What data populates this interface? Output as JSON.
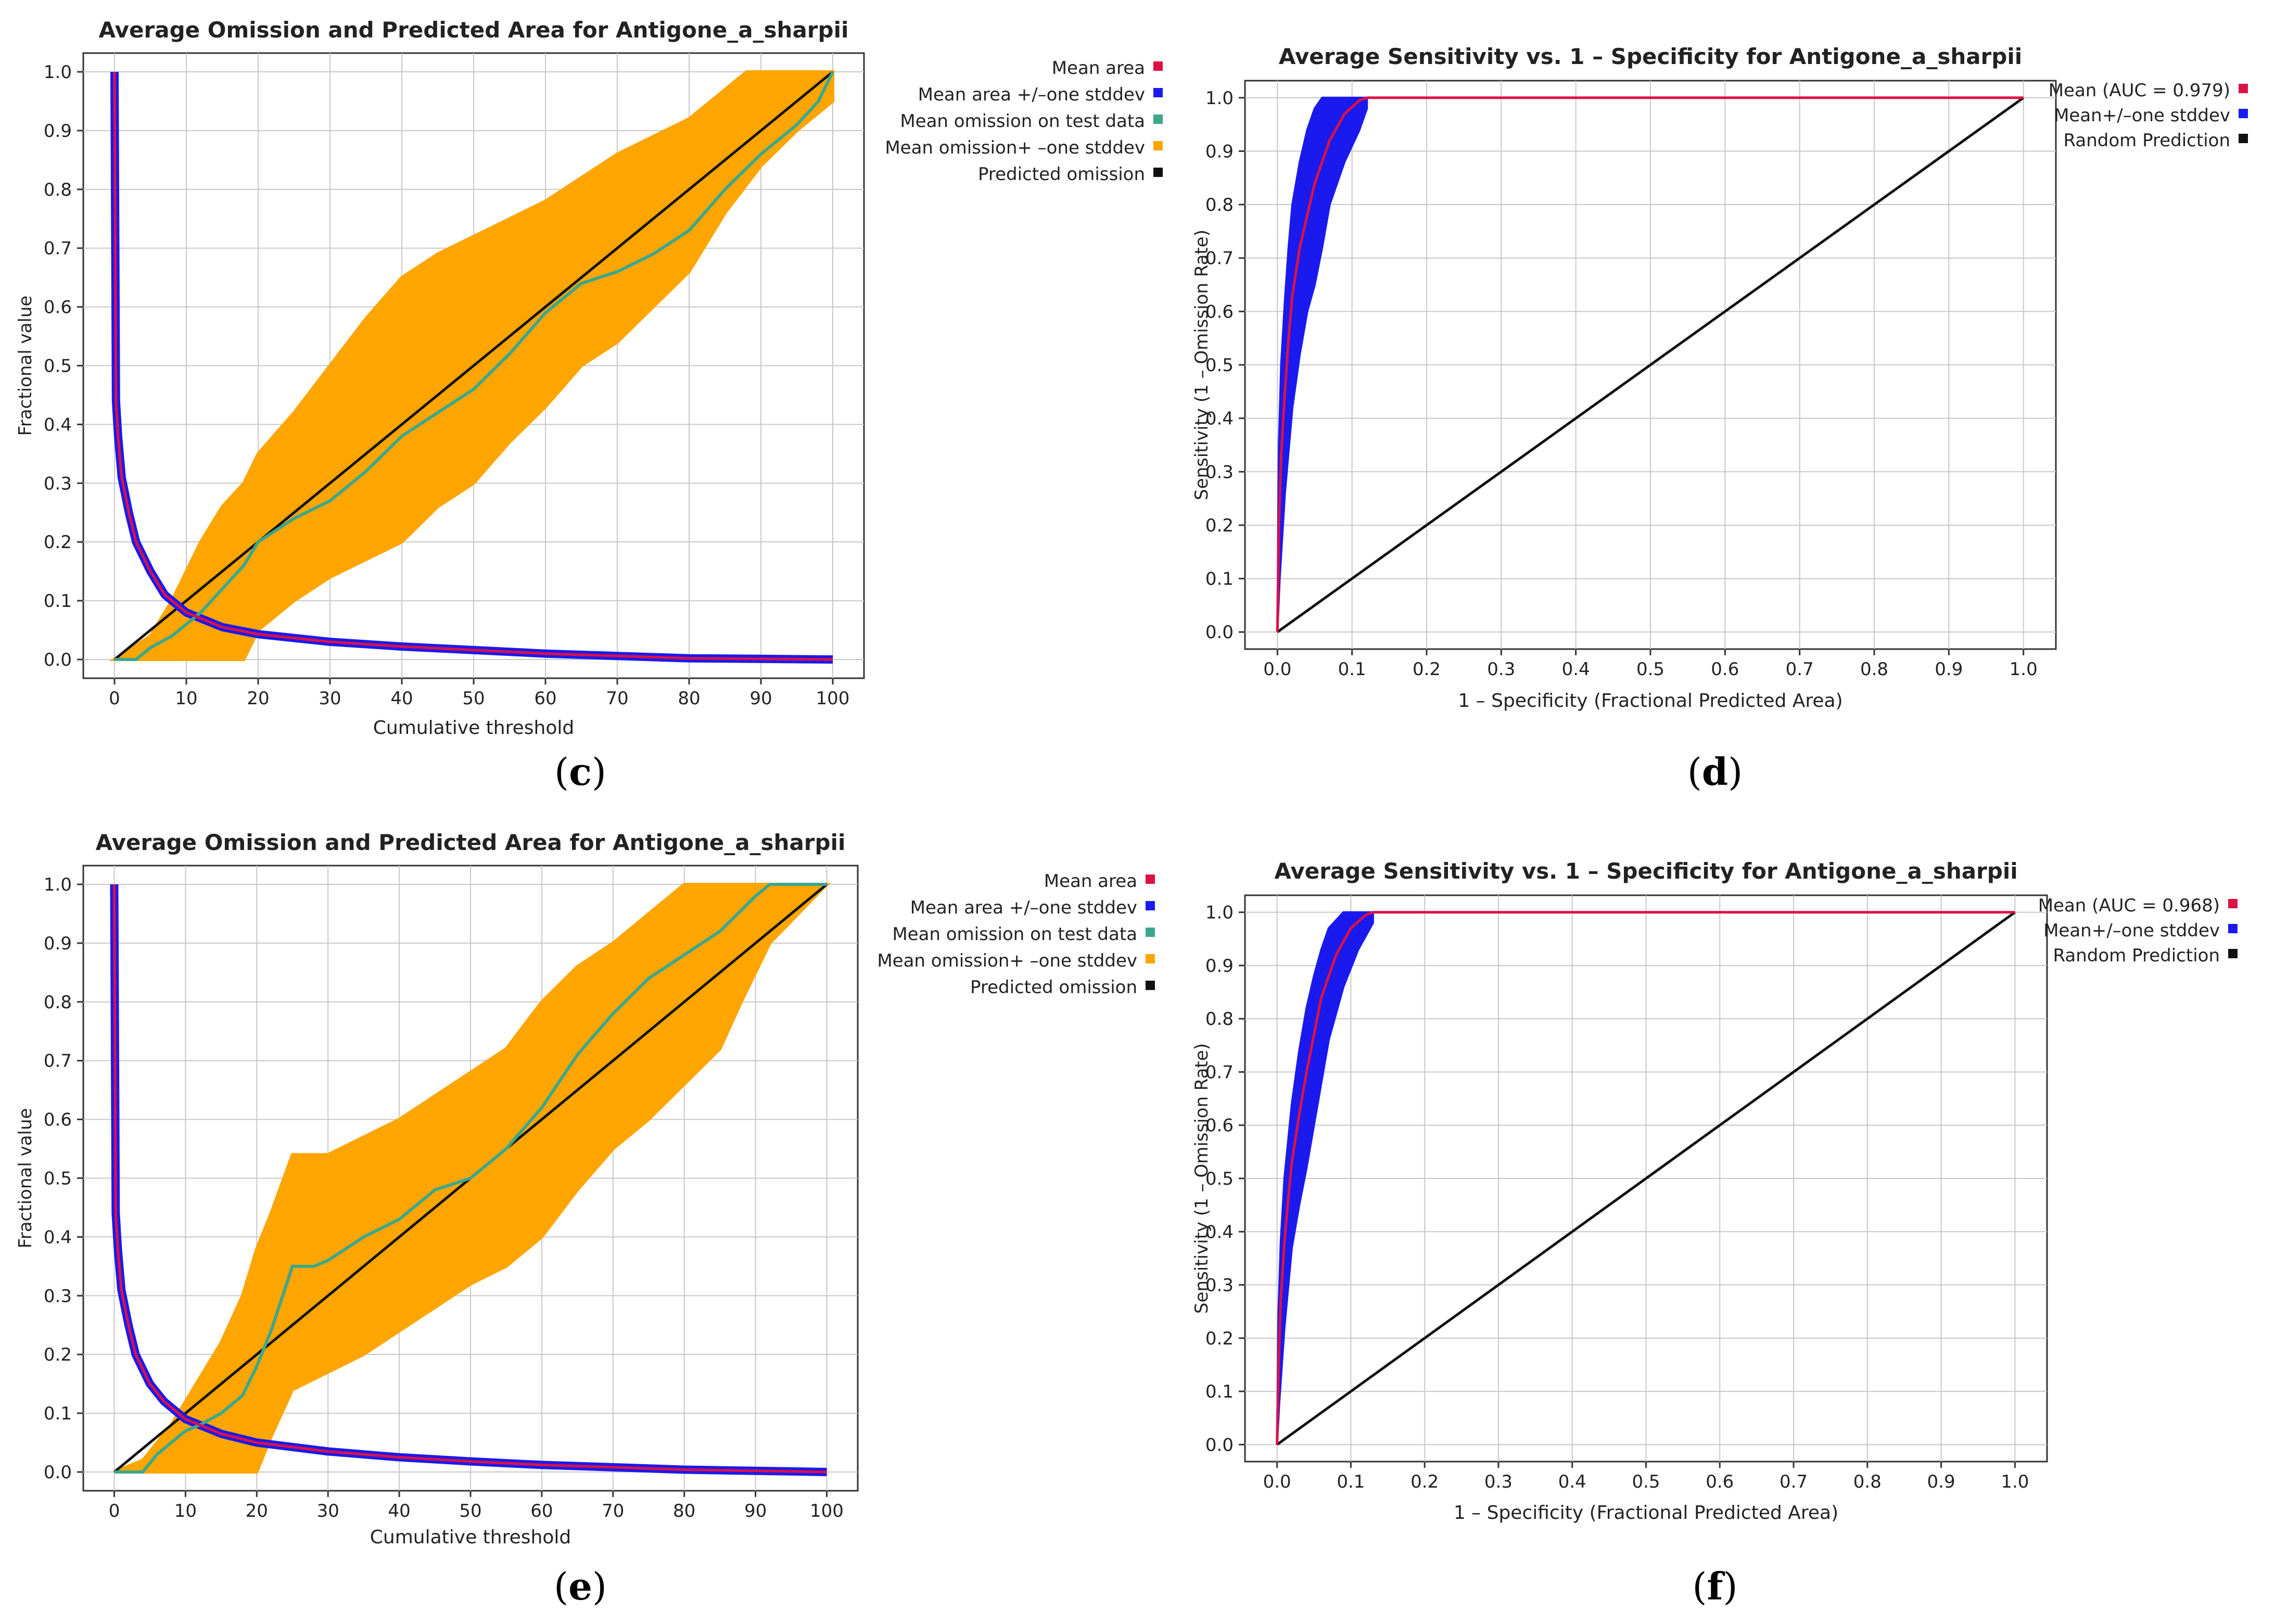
{
  "colors": {
    "mean_area": "#dd1144",
    "mean_area_std": "#1a1aee",
    "mean_omission": "#3ba88b",
    "omission_std": "#ffa500",
    "predicted": "#111111",
    "auc_mean": "#dd1144",
    "auc_std": "#1a1aee",
    "random": "#111111",
    "grid": "#c8c8c8"
  },
  "captions": [
    {
      "open": "(",
      "letter": "c",
      "close": ")"
    },
    {
      "open": "(",
      "letter": "d",
      "close": ")"
    },
    {
      "open": "(",
      "letter": "e",
      "close": ")"
    },
    {
      "open": "(",
      "letter": "f",
      "close": ")"
    }
  ],
  "chart_data": [
    {
      "id": "c",
      "type": "line",
      "title": "Average Omission and Predicted Area for Antigone_a_sharpii",
      "xlabel": "Cumulative threshold",
      "ylabel": "Fractional value",
      "xlim": [
        0,
        100
      ],
      "ylim": [
        0,
        1
      ],
      "xticks": [
        "0",
        "10",
        "20",
        "30",
        "40",
        "50",
        "60",
        "70",
        "80",
        "90",
        "100"
      ],
      "yticks": [
        "0.0",
        "0.1",
        "0.2",
        "0.3",
        "0.4",
        "0.5",
        "0.6",
        "0.7",
        "0.8",
        "0.9",
        "1.0"
      ],
      "legend": [
        "Mean area",
        "Mean area +/–one stddev",
        "Mean omission on test data",
        "Mean omission+ –one stddev",
        "Predicted omission"
      ],
      "series": [
        {
          "name": "Mean area",
          "x": [
            0,
            0.2,
            0.5,
            1,
            2,
            3,
            5,
            7,
            10,
            15,
            20,
            30,
            40,
            50,
            60,
            70,
            80,
            90,
            100
          ],
          "values": [
            1.0,
            0.44,
            0.38,
            0.31,
            0.25,
            0.2,
            0.15,
            0.11,
            0.08,
            0.055,
            0.043,
            0.03,
            0.022,
            0.016,
            0.01,
            0.006,
            0.002,
            0.001,
            0.0
          ]
        },
        {
          "name": "Mean omission on test data",
          "x": [
            0,
            3,
            5,
            8,
            10,
            12,
            15,
            18,
            20,
            25,
            30,
            35,
            40,
            45,
            50,
            55,
            60,
            65,
            70,
            75,
            80,
            85,
            90,
            95,
            98,
            100
          ],
          "values": [
            0,
            0,
            0.02,
            0.04,
            0.06,
            0.08,
            0.12,
            0.16,
            0.2,
            0.24,
            0.27,
            0.32,
            0.38,
            0.42,
            0.46,
            0.52,
            0.59,
            0.64,
            0.66,
            0.69,
            0.73,
            0.8,
            0.86,
            0.91,
            0.95,
            1.0
          ]
        },
        {
          "name": "Mean omission upper",
          "x": [
            0,
            5,
            8,
            10,
            12,
            15,
            18,
            20,
            25,
            30,
            35,
            40,
            45,
            50,
            55,
            60,
            65,
            70,
            75,
            80,
            85,
            88,
            92,
            95,
            100
          ],
          "values": [
            0,
            0.04,
            0.1,
            0.15,
            0.2,
            0.26,
            0.3,
            0.35,
            0.42,
            0.5,
            0.58,
            0.65,
            0.69,
            0.72,
            0.75,
            0.78,
            0.82,
            0.86,
            0.89,
            0.92,
            0.97,
            1.0,
            1.0,
            1.0,
            1.0
          ]
        },
        {
          "name": "Mean omission lower",
          "x": [
            0,
            5,
            10,
            15,
            18,
            20,
            25,
            30,
            35,
            40,
            45,
            50,
            55,
            60,
            65,
            70,
            75,
            80,
            85,
            90,
            95,
            100
          ],
          "values": [
            0,
            0,
            0,
            0,
            0,
            0.05,
            0.1,
            0.14,
            0.17,
            0.2,
            0.26,
            0.3,
            0.37,
            0.43,
            0.5,
            0.54,
            0.6,
            0.66,
            0.76,
            0.84,
            0.9,
            0.95
          ]
        },
        {
          "name": "Predicted omission",
          "x": [
            0,
            100
          ],
          "values": [
            0,
            1
          ]
        }
      ]
    },
    {
      "id": "d",
      "type": "line",
      "title": "Average Sensitivity vs. 1 – Specificity for Antigone_a_sharpii",
      "xlabel": "1 – Specificity (Fractional Predicted Area)",
      "ylabel": "Sensitivity (1 – Omission Rate)",
      "xlim": [
        0,
        1
      ],
      "ylim": [
        0,
        1
      ],
      "xticks": [
        "0.0",
        "0.1",
        "0.2",
        "0.3",
        "0.4",
        "0.5",
        "0.6",
        "0.7",
        "0.8",
        "0.9",
        "1.0"
      ],
      "yticks": [
        "0.0",
        "0.1",
        "0.2",
        "0.3",
        "0.4",
        "0.5",
        "0.6",
        "0.7",
        "0.8",
        "0.9",
        "1.0"
      ],
      "legend": [
        "Mean (AUC = 0.979)",
        "Mean+/–one stddev",
        "Random Prediction"
      ],
      "series": [
        {
          "name": "Mean (AUC = 0.979)",
          "x": [
            0,
            0.002,
            0.005,
            0.01,
            0.015,
            0.02,
            0.03,
            0.04,
            0.05,
            0.07,
            0.09,
            0.11,
            0.12,
            1.0
          ],
          "values": [
            0,
            0.2,
            0.33,
            0.45,
            0.55,
            0.63,
            0.72,
            0.78,
            0.84,
            0.92,
            0.97,
            0.995,
            1.0,
            1.0
          ]
        },
        {
          "name": "Std upper",
          "x": [
            0,
            0.002,
            0.005,
            0.01,
            0.015,
            0.02,
            0.03,
            0.04,
            0.05,
            0.06,
            0.12
          ],
          "values": [
            0,
            0.35,
            0.5,
            0.62,
            0.72,
            0.8,
            0.88,
            0.94,
            0.98,
            1.0,
            1.0
          ]
        },
        {
          "name": "Std lower",
          "x": [
            0,
            0.003,
            0.01,
            0.02,
            0.03,
            0.04,
            0.05,
            0.06,
            0.07,
            0.09,
            0.11,
            0.12
          ],
          "values": [
            0,
            0.1,
            0.26,
            0.42,
            0.52,
            0.6,
            0.65,
            0.72,
            0.8,
            0.88,
            0.94,
            0.98
          ]
        },
        {
          "name": "Random Prediction",
          "x": [
            0,
            1
          ],
          "values": [
            0,
            1
          ]
        }
      ]
    },
    {
      "id": "e",
      "type": "line",
      "title": "Average Omission and Predicted Area for Antigone_a_sharpii",
      "xlabel": "Cumulative threshold",
      "ylabel": "Fractional value",
      "xlim": [
        0,
        100
      ],
      "ylim": [
        0,
        1
      ],
      "xticks": [
        "0",
        "10",
        "20",
        "30",
        "40",
        "50",
        "60",
        "70",
        "80",
        "90",
        "100"
      ],
      "yticks": [
        "0.0",
        "0.1",
        "0.2",
        "0.3",
        "0.4",
        "0.5",
        "0.6",
        "0.7",
        "0.8",
        "0.9",
        "1.0"
      ],
      "legend": [
        "Mean area",
        "Mean area +/–one stddev",
        "Mean omission on test data",
        "Mean omission+ –one stddev",
        "Predicted omission"
      ],
      "series": [
        {
          "name": "Mean area",
          "x": [
            0,
            0.2,
            0.5,
            1,
            2,
            3,
            5,
            7,
            10,
            15,
            20,
            30,
            40,
            50,
            60,
            70,
            80,
            90,
            100
          ],
          "values": [
            1.0,
            0.44,
            0.38,
            0.31,
            0.25,
            0.2,
            0.15,
            0.12,
            0.09,
            0.065,
            0.05,
            0.035,
            0.025,
            0.018,
            0.012,
            0.008,
            0.004,
            0.002,
            0.0
          ]
        },
        {
          "name": "Mean omission on test data",
          "x": [
            0,
            4,
            6,
            8,
            10,
            12,
            15,
            18,
            20,
            22,
            25,
            28,
            30,
            35,
            40,
            45,
            50,
            55,
            60,
            65,
            70,
            75,
            80,
            85,
            90,
            92,
            100
          ],
          "values": [
            0,
            0,
            0.03,
            0.05,
            0.07,
            0.08,
            0.1,
            0.13,
            0.18,
            0.24,
            0.35,
            0.35,
            0.36,
            0.4,
            0.43,
            0.48,
            0.5,
            0.55,
            0.62,
            0.71,
            0.78,
            0.84,
            0.88,
            0.92,
            0.98,
            1.0,
            1.0
          ]
        },
        {
          "name": "Mean omission upper",
          "x": [
            0,
            4,
            6,
            8,
            10,
            12,
            15,
            18,
            20,
            22,
            25,
            30,
            40,
            45,
            50,
            55,
            60,
            65,
            70,
            75,
            80,
            85,
            100
          ],
          "values": [
            0,
            0.02,
            0.05,
            0.08,
            0.12,
            0.16,
            0.22,
            0.3,
            0.38,
            0.44,
            0.54,
            0.54,
            0.6,
            0.64,
            0.68,
            0.72,
            0.8,
            0.86,
            0.9,
            0.95,
            1.0,
            1.0,
            1.0
          ]
        },
        {
          "name": "Mean omission lower",
          "x": [
            0,
            5,
            10,
            15,
            20,
            22,
            25,
            30,
            35,
            40,
            45,
            50,
            55,
            60,
            65,
            70,
            75,
            80,
            85,
            88,
            92
          ],
          "values": [
            0,
            0,
            0,
            0,
            0,
            0.06,
            0.14,
            0.17,
            0.2,
            0.24,
            0.28,
            0.32,
            0.35,
            0.4,
            0.48,
            0.55,
            0.6,
            0.66,
            0.72,
            0.8,
            0.9
          ]
        },
        {
          "name": "Predicted omission",
          "x": [
            0,
            100
          ],
          "values": [
            0,
            1
          ]
        }
      ]
    },
    {
      "id": "f",
      "type": "line",
      "title": "Average Sensitivity vs. 1 – Specificity for Antigone_a_sharpii",
      "xlabel": "1 – Specificity (Fractional Predicted Area)",
      "ylabel": "Sensitivity (1 – Omission Rate)",
      "xlim": [
        0,
        1
      ],
      "ylim": [
        0,
        1
      ],
      "xticks": [
        "0.0",
        "0.1",
        "0.2",
        "0.3",
        "0.4",
        "0.5",
        "0.6",
        "0.7",
        "0.8",
        "0.9",
        "1.0"
      ],
      "yticks": [
        "0.0",
        "0.1",
        "0.2",
        "0.3",
        "0.4",
        "0.5",
        "0.6",
        "0.7",
        "0.8",
        "0.9",
        "1.0"
      ],
      "legend": [
        "Mean (AUC = 0.968)",
        "Mean+/–one stddev",
        "Random Prediction"
      ],
      "series": [
        {
          "name": "Mean (AUC = 0.968)",
          "x": [
            0,
            0.002,
            0.005,
            0.01,
            0.015,
            0.02,
            0.03,
            0.04,
            0.05,
            0.06,
            0.08,
            0.1,
            0.12,
            0.13,
            1.0
          ],
          "values": [
            0,
            0.15,
            0.27,
            0.38,
            0.46,
            0.53,
            0.62,
            0.7,
            0.77,
            0.84,
            0.92,
            0.97,
            0.995,
            1.0,
            1.0
          ]
        },
        {
          "name": "Std upper",
          "x": [
            0,
            0.002,
            0.005,
            0.01,
            0.02,
            0.03,
            0.04,
            0.05,
            0.06,
            0.07,
            0.09,
            0.13
          ],
          "values": [
            0,
            0.25,
            0.38,
            0.5,
            0.64,
            0.74,
            0.82,
            0.88,
            0.93,
            0.97,
            1.0,
            1.0
          ]
        },
        {
          "name": "Std lower",
          "x": [
            0,
            0.003,
            0.01,
            0.02,
            0.03,
            0.04,
            0.05,
            0.06,
            0.07,
            0.09,
            0.11,
            0.13
          ],
          "values": [
            0,
            0.08,
            0.22,
            0.37,
            0.45,
            0.52,
            0.6,
            0.68,
            0.76,
            0.86,
            0.93,
            0.98
          ]
        },
        {
          "name": "Random Prediction",
          "x": [
            0,
            1
          ],
          "values": [
            0,
            1
          ]
        }
      ]
    }
  ]
}
